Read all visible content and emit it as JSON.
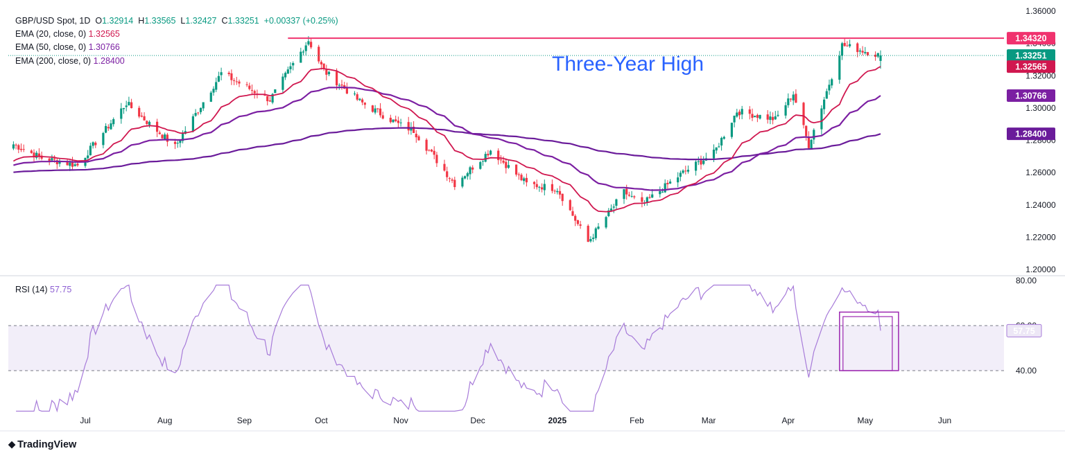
{
  "header": {
    "symbol": "GBP/USD Spot, 1D",
    "ohlc": {
      "o_label": "O",
      "o": "1.32914",
      "h_label": "H",
      "h": "1.33565",
      "l_label": "L",
      "l": "1.32427",
      "c_label": "C",
      "c": "1.33251",
      "change": "+0.00337 (+0.25%)"
    },
    "ema20_label": "EMA (20, close, 0)",
    "ema20_value": "1.32565",
    "ema50_label": "EMA (50, close, 0)",
    "ema50_value": "1.30766",
    "ema200_label": "EMA (200, close, 0)",
    "ema200_value": "1.28400",
    "rsi_label": "RSI (14)",
    "rsi_value": "57.75"
  },
  "annotation": "Three-Year High",
  "brand": "TradingView",
  "colors": {
    "up": "#089981",
    "down": "#f23645",
    "ema20": "#d0174f",
    "ema50": "#7b1fa2",
    "ema200": "#6a1b9a",
    "resistance": "#f0326e",
    "rsi": "#a77bd9",
    "text_annotation": "#2962ff",
    "rsi_box": "#9c27b0"
  },
  "chart_data": [
    {
      "type": "line",
      "title": "GBP/USD Spot, 1D",
      "x_axis_labels": [
        "Jul",
        "Aug",
        "Sep",
        "Oct",
        "Nov",
        "Dec",
        "2025",
        "Feb",
        "Mar",
        "Apr",
        "May",
        "Jun"
      ],
      "y_axis_labels": [
        "1.36000",
        "1.34000",
        "1.32000",
        "1.30000",
        "1.28000",
        "1.26000",
        "1.24000",
        "1.22000",
        "1.20000"
      ],
      "ylim": [
        1.2,
        1.36
      ],
      "price_badges": [
        {
          "label": "resistance",
          "value": "1.34320"
        },
        {
          "label": "close",
          "value": "1.33251"
        },
        {
          "label": "EMA 20",
          "value": "1.32565"
        },
        {
          "label": "EMA 50",
          "value": "1.30766"
        },
        {
          "label": "EMA 200",
          "value": "1.28400"
        }
      ],
      "resistance_level": 1.3432,
      "close_anchors": [
        {
          "date": "2024-06-03",
          "close": 1.2775
        },
        {
          "date": "2024-06-14",
          "close": 1.269
        },
        {
          "date": "2024-06-28",
          "close": 1.2645
        },
        {
          "date": "2024-07-17",
          "close": 1.303
        },
        {
          "date": "2024-08-05",
          "close": 1.276
        },
        {
          "date": "2024-08-23",
          "close": 1.3215
        },
        {
          "date": "2024-09-11",
          "close": 1.305
        },
        {
          "date": "2024-09-26",
          "close": 1.342
        },
        {
          "date": "2024-10-02",
          "close": 1.323
        },
        {
          "date": "2024-10-16",
          "close": 1.304
        },
        {
          "date": "2024-10-31",
          "close": 1.29
        },
        {
          "date": "2024-11-06",
          "close": 1.286
        },
        {
          "date": "2024-11-22",
          "close": 1.253
        },
        {
          "date": "2024-12-06",
          "close": 1.274
        },
        {
          "date": "2024-12-20",
          "close": 1.253
        },
        {
          "date": "2025-01-01",
          "close": 1.25
        },
        {
          "date": "2025-01-13",
          "close": 1.217
        },
        {
          "date": "2025-01-27",
          "close": 1.248
        },
        {
          "date": "2025-02-03",
          "close": 1.24
        },
        {
          "date": "2025-02-19",
          "close": 1.26
        },
        {
          "date": "2025-03-03",
          "close": 1.272
        },
        {
          "date": "2025-03-12",
          "close": 1.298
        },
        {
          "date": "2025-03-27",
          "close": 1.293
        },
        {
          "date": "2025-04-03",
          "close": 1.309
        },
        {
          "date": "2025-04-09",
          "close": 1.277
        },
        {
          "date": "2025-04-22",
          "close": 1.339
        },
        {
          "date": "2025-04-29",
          "close": 1.336
        },
        {
          "date": "2025-05-07",
          "close": 1.3325
        }
      ],
      "series": [
        {
          "name": "EMA (20, close, 0)",
          "last": 1.32565
        },
        {
          "name": "EMA (50, close, 0)",
          "last": 1.30766
        },
        {
          "name": "EMA (200, close, 0)",
          "last": 1.284
        }
      ]
    },
    {
      "type": "line",
      "title": "RSI (14)",
      "ylim": [
        20,
        80
      ],
      "y_axis_labels": [
        "80.00",
        "60.00",
        "40.00"
      ],
      "bands": [
        40,
        60
      ],
      "last_value": 57.75,
      "badge": "57.75"
    }
  ]
}
